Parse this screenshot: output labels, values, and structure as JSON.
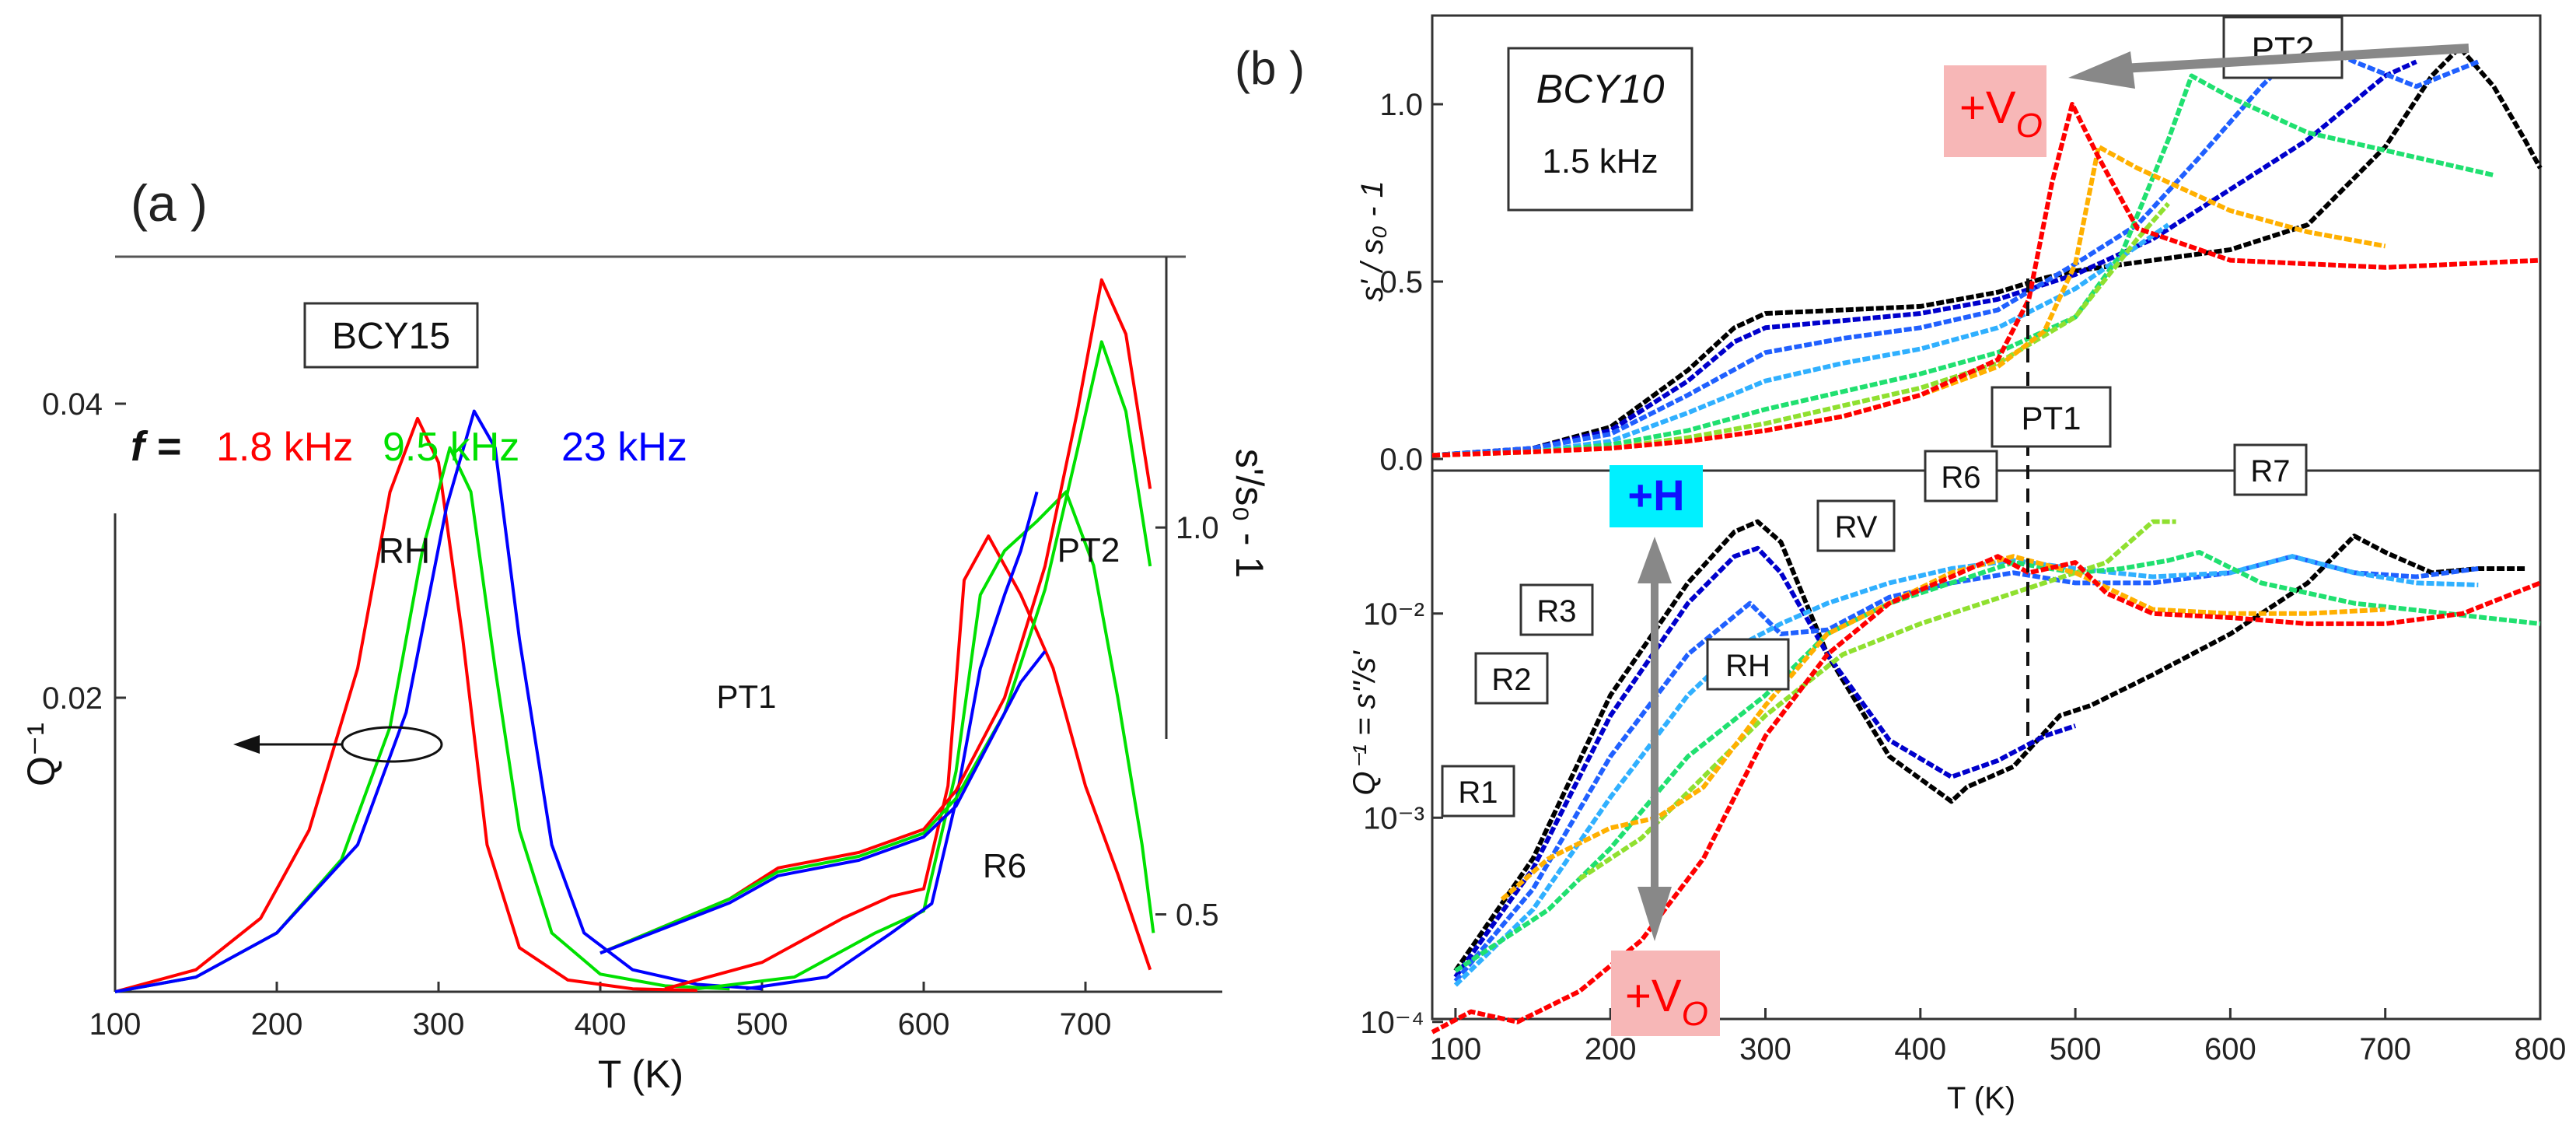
{
  "chart_data": [
    {
      "panel": "(a )",
      "type": "line",
      "boxed_label": "BCY15",
      "f_prefix": "f =",
      "legend": [
        {
          "name": "1.8 kHz",
          "color": "#ff0000"
        },
        {
          "name": "9.5 kHz",
          "color": "#00e000"
        },
        {
          "name": "23 kHz",
          "color": "#0000ff"
        }
      ],
      "xlabel": "T (K)",
      "xlim": [
        100,
        750
      ],
      "xticks": [
        "100",
        "200",
        "300",
        "400",
        "500",
        "600",
        "700"
      ],
      "ylabel_left": "Q⁻¹",
      "ylim_left": [
        0,
        0.05
      ],
      "yticks_left": [
        "0.02",
        "0.04"
      ],
      "ylabel_right": "s'/s₀ - 1",
      "ylim_right": [
        0.4,
        1.35
      ],
      "yticks_right": [
        "0.5",
        "1.0"
      ],
      "annotations": {
        "rh": "RH",
        "pt1": "PT1",
        "pt2": "PT2",
        "r6": "R6"
      },
      "series": [
        {
          "name": "Q-1 1.8 kHz",
          "axis": "left",
          "color": "#ff0000",
          "x": [
            100,
            150,
            190,
            220,
            250,
            270,
            287,
            300,
            315,
            330,
            350,
            380,
            420,
            460
          ],
          "y": [
            0,
            0.0015,
            0.005,
            0.011,
            0.022,
            0.034,
            0.039,
            0.036,
            0.024,
            0.01,
            0.003,
            0.0008,
            0.0002,
            0.0001
          ]
        },
        {
          "name": "Q-1 9.5 kHz",
          "axis": "left",
          "color": "#00e000",
          "x": [
            100,
            150,
            200,
            240,
            270,
            290,
            307,
            320,
            335,
            350,
            370,
            400,
            440,
            480
          ],
          "y": [
            0,
            0.001,
            0.004,
            0.009,
            0.018,
            0.03,
            0.037,
            0.034,
            0.022,
            0.011,
            0.004,
            0.0012,
            0.0004,
            0.0002
          ]
        },
        {
          "name": "Q-1 23 kHz",
          "axis": "left",
          "color": "#0000ff",
          "x": [
            100,
            150,
            200,
            250,
            280,
            305,
            322,
            335,
            350,
            370,
            390,
            420,
            460,
            500
          ],
          "y": [
            0,
            0.001,
            0.004,
            0.01,
            0.019,
            0.033,
            0.0395,
            0.037,
            0.024,
            0.01,
            0.004,
            0.0015,
            0.0005,
            0.0002
          ]
        },
        {
          "name": "Q-1 1.8 kHz high-T",
          "axis": "left",
          "color": "#ff0000",
          "x": [
            440,
            500,
            550,
            580,
            600,
            615,
            625,
            640,
            660,
            680,
            700,
            720,
            740
          ],
          "y": [
            0.0002,
            0.002,
            0.005,
            0.0065,
            0.007,
            0.014,
            0.028,
            0.031,
            0.027,
            0.022,
            0.014,
            0.008,
            0.0015
          ]
        },
        {
          "name": "Q-1 9.5 kHz high-T",
          "axis": "left",
          "color": "#00e000",
          "x": [
            460,
            520,
            570,
            600,
            620,
            635,
            650,
            670,
            688,
            705,
            720,
            735,
            742
          ],
          "y": [
            0.0002,
            0.001,
            0.004,
            0.0055,
            0.015,
            0.027,
            0.03,
            0.032,
            0.034,
            0.029,
            0.02,
            0.01,
            0.004
          ]
        },
        {
          "name": "Q-1 23 kHz high-T",
          "axis": "left",
          "color": "#0000ff",
          "x": [
            490,
            540,
            580,
            605,
            620,
            635,
            650,
            660,
            670
          ],
          "y": [
            0.0002,
            0.001,
            0.004,
            0.006,
            0.013,
            0.022,
            0.027,
            0.03,
            0.034
          ]
        },
        {
          "name": "s'/s0-1 1.8 kHz",
          "axis": "right",
          "color": "#ff0000",
          "x": [
            400,
            480,
            510,
            560,
            600,
            620,
            650,
            675,
            695,
            710,
            725,
            740
          ],
          "y": [
            0.45,
            0.52,
            0.56,
            0.58,
            0.61,
            0.66,
            0.78,
            0.95,
            1.15,
            1.32,
            1.25,
            1.05
          ]
        },
        {
          "name": "s'/s0-1 9.5 kHz",
          "axis": "right",
          "color": "#00e000",
          "x": [
            400,
            480,
            510,
            560,
            600,
            620,
            650,
            675,
            695,
            710,
            725,
            740
          ],
          "y": [
            0.45,
            0.52,
            0.555,
            0.575,
            0.605,
            0.65,
            0.76,
            0.92,
            1.1,
            1.24,
            1.15,
            0.95
          ]
        },
        {
          "name": "s'/s0-1 23 kHz",
          "axis": "right",
          "color": "#0000ff",
          "x": [
            400,
            480,
            510,
            560,
            600,
            620,
            640,
            660,
            675
          ],
          "y": [
            0.45,
            0.515,
            0.55,
            0.57,
            0.6,
            0.64,
            0.72,
            0.8,
            0.84
          ]
        }
      ]
    },
    {
      "panel": "(b )",
      "type": "line",
      "boxed_label": "BCY10",
      "subtitle": "1.5 kHz",
      "xlabel": "T (K)",
      "xlim": [
        85,
        800
      ],
      "xticks": [
        "100",
        "200",
        "300",
        "400",
        "500",
        "600",
        "700",
        "800"
      ],
      "top_ylabel": "s' / s₀ - 1",
      "top_ylim": [
        0,
        1.25
      ],
      "top_yticks": [
        "0.0",
        "0.5",
        "1.0"
      ],
      "bottom_ylabel": "Q⁻¹ = s''/s'",
      "bottom_ylim_log10": [
        -4.1,
        -1.3
      ],
      "bottom_yticks": [
        "10⁻⁴",
        "10⁻³",
        "10⁻²"
      ],
      "annotations": {
        "pt2": "PT2",
        "vo_top": "+V",
        "vo_sub": "O",
        "pt1": "PT1",
        "h_label": "+H",
        "vo_bottom": "+V",
        "vo_bottom_sub": "O",
        "r1": "R1",
        "r2": "R2",
        "r3": "R3",
        "rh": "RH",
        "rv": "RV",
        "r6": "R6",
        "r7": "R7"
      },
      "series": [
        {
          "name": "s' black",
          "axis": "top",
          "color": "#000000",
          "x": [
            85,
            150,
            200,
            250,
            280,
            300,
            350,
            400,
            450,
            480,
            500,
            550,
            600,
            650,
            700,
            730,
            748,
            770,
            790,
            800
          ],
          "y": [
            0.01,
            0.03,
            0.09,
            0.25,
            0.37,
            0.41,
            0.42,
            0.43,
            0.47,
            0.51,
            0.53,
            0.56,
            0.59,
            0.66,
            0.88,
            1.08,
            1.16,
            1.05,
            0.9,
            0.82
          ]
        },
        {
          "name": "s' dark blue",
          "axis": "top",
          "color": "#0000cc",
          "x": [
            85,
            150,
            200,
            250,
            280,
            300,
            350,
            400,
            450,
            500,
            550,
            600,
            650,
            700,
            720
          ],
          "y": [
            0.01,
            0.03,
            0.08,
            0.22,
            0.33,
            0.37,
            0.39,
            0.41,
            0.45,
            0.52,
            0.62,
            0.76,
            0.9,
            1.08,
            1.12
          ]
        },
        {
          "name": "s' blue",
          "axis": "top",
          "color": "#2060ff",
          "x": [
            85,
            150,
            200,
            250,
            300,
            350,
            400,
            450,
            500,
            540,
            580,
            620,
            650,
            680,
            720,
            760
          ],
          "y": [
            0.01,
            0.03,
            0.07,
            0.18,
            0.3,
            0.34,
            0.37,
            0.42,
            0.55,
            0.66,
            0.85,
            1.05,
            1.18,
            1.12,
            1.05,
            1.12
          ]
        },
        {
          "name": "s' light blue",
          "axis": "top",
          "color": "#30b0ff",
          "x": [
            85,
            150,
            200,
            250,
            300,
            350,
            400,
            450,
            500,
            540,
            560
          ],
          "y": [
            0.01,
            0.02,
            0.05,
            0.13,
            0.22,
            0.27,
            0.31,
            0.37,
            0.48,
            0.6,
            0.66
          ]
        },
        {
          "name": "s' green",
          "axis": "top",
          "color": "#20e070",
          "x": [
            85,
            150,
            200,
            250,
            300,
            350,
            400,
            450,
            500,
            530,
            560,
            575,
            600,
            650,
            700,
            750,
            770
          ],
          "y": [
            0.01,
            0.02,
            0.04,
            0.08,
            0.14,
            0.19,
            0.24,
            0.3,
            0.4,
            0.58,
            0.9,
            1.08,
            1.02,
            0.92,
            0.87,
            0.82,
            0.8
          ]
        },
        {
          "name": "s' yellow-green",
          "axis": "top",
          "color": "#90e030",
          "x": [
            85,
            150,
            200,
            250,
            300,
            350,
            400,
            450,
            500,
            540,
            560
          ],
          "y": [
            0.01,
            0.02,
            0.03,
            0.06,
            0.1,
            0.15,
            0.2,
            0.27,
            0.4,
            0.62,
            0.72
          ]
        },
        {
          "name": "s' orange",
          "axis": "top",
          "color": "#ffb000",
          "x": [
            85,
            150,
            200,
            250,
            300,
            350,
            400,
            450,
            480,
            500,
            515,
            540,
            600,
            650,
            700
          ],
          "y": [
            0.01,
            0.02,
            0.03,
            0.05,
            0.08,
            0.12,
            0.18,
            0.26,
            0.36,
            0.55,
            0.88,
            0.82,
            0.7,
            0.64,
            0.6
          ]
        },
        {
          "name": "s' red",
          "axis": "top",
          "color": "#ff0000",
          "x": [
            85,
            150,
            200,
            250,
            300,
            350,
            400,
            450,
            470,
            485,
            498,
            515,
            540,
            600,
            700,
            800
          ],
          "y": [
            0.01,
            0.02,
            0.03,
            0.05,
            0.08,
            0.12,
            0.18,
            0.28,
            0.45,
            0.78,
            1.0,
            0.85,
            0.65,
            0.56,
            0.54,
            0.56
          ]
        },
        {
          "name": "Q-1 black",
          "axis": "bottom",
          "color": "#000000",
          "x": [
            100,
            150,
            200,
            250,
            280,
            295,
            310,
            340,
            380,
            420,
            430,
            460,
            490,
            510,
            550,
            600,
            650,
            680,
            700,
            730,
            760,
            790
          ],
          "y": [
            -3.75,
            -3.2,
            -2.4,
            -1.85,
            -1.6,
            -1.55,
            -1.65,
            -2.2,
            -2.7,
            -2.92,
            -2.85,
            -2.75,
            -2.5,
            -2.45,
            -2.3,
            -2.1,
            -1.85,
            -1.62,
            -1.7,
            -1.8,
            -1.78,
            -1.78
          ]
        },
        {
          "name": "Q-1 dark blue",
          "axis": "bottom",
          "color": "#0000cc",
          "x": [
            100,
            150,
            200,
            250,
            280,
            295,
            310,
            340,
            380,
            420,
            450,
            480,
            500
          ],
          "y": [
            -3.78,
            -3.25,
            -2.5,
            -1.95,
            -1.72,
            -1.68,
            -1.8,
            -2.2,
            -2.62,
            -2.8,
            -2.72,
            -2.6,
            -2.55
          ]
        },
        {
          "name": "Q-1 blue",
          "axis": "bottom",
          "color": "#2060ff",
          "x": [
            100,
            150,
            200,
            250,
            290,
            310,
            340,
            380,
            420,
            460,
            500,
            550,
            600,
            640,
            680,
            720,
            760
          ],
          "y": [
            -3.8,
            -3.35,
            -2.7,
            -2.2,
            -1.95,
            -2.1,
            -2.08,
            -1.92,
            -1.85,
            -1.8,
            -1.85,
            -1.85,
            -1.8,
            -1.72,
            -1.8,
            -1.82,
            -1.78
          ]
        },
        {
          "name": "Q-1 light blue",
          "axis": "bottom",
          "color": "#30b0ff",
          "x": [
            100,
            150,
            200,
            250,
            285,
            310,
            340,
            380,
            420,
            460,
            500,
            550,
            600,
            640,
            680,
            720,
            760
          ],
          "y": [
            -3.82,
            -3.45,
            -2.9,
            -2.4,
            -2.15,
            -2.05,
            -1.95,
            -1.85,
            -1.78,
            -1.74,
            -1.78,
            -1.82,
            -1.8,
            -1.72,
            -1.8,
            -1.85,
            -1.86
          ]
        },
        {
          "name": "Q-1 green",
          "axis": "bottom",
          "color": "#20e070",
          "x": [
            100,
            130,
            160,
            200,
            250,
            300,
            340,
            380,
            420,
            460,
            500,
            530,
            560,
            580,
            620,
            680,
            740,
            800
          ],
          "y": [
            -3.75,
            -3.6,
            -3.45,
            -3.15,
            -2.7,
            -2.4,
            -2.1,
            -1.95,
            -1.85,
            -1.75,
            -1.8,
            -1.78,
            -1.74,
            -1.7,
            -1.85,
            -1.95,
            -2.0,
            -2.05
          ]
        },
        {
          "name": "Q-1 yellow-green",
          "axis": "bottom",
          "color": "#90e030",
          "x": [
            180,
            220,
            260,
            300,
            350,
            400,
            440,
            480,
            520,
            550,
            565
          ],
          "y": [
            -3.3,
            -3.1,
            -2.8,
            -2.5,
            -2.2,
            -2.05,
            -1.95,
            -1.85,
            -1.75,
            -1.55,
            -1.55
          ]
        },
        {
          "name": "Q-1 orange",
          "axis": "bottom",
          "color": "#ffb000",
          "x": [
            130,
            160,
            200,
            230,
            260,
            300,
            340,
            380,
            420,
            460,
            500,
            550,
            600,
            650,
            700
          ],
          "y": [
            -3.4,
            -3.2,
            -3.05,
            -3.0,
            -2.85,
            -2.45,
            -2.1,
            -1.95,
            -1.8,
            -1.72,
            -1.8,
            -1.98,
            -2.0,
            -2.0,
            -1.98
          ]
        },
        {
          "name": "Q-1 red",
          "axis": "bottom",
          "color": "#ff0000",
          "x": [
            85,
            110,
            140,
            180,
            220,
            260,
            300,
            340,
            380,
            420,
            450,
            470,
            500,
            520,
            550,
            600,
            650,
            700,
            750,
            800
          ],
          "y": [
            -4.05,
            -3.95,
            -4.0,
            -3.85,
            -3.6,
            -3.2,
            -2.6,
            -2.2,
            -1.95,
            -1.82,
            -1.72,
            -1.8,
            -1.75,
            -1.9,
            -2.0,
            -2.02,
            -2.05,
            -2.05,
            -2.0,
            -1.85
          ]
        }
      ]
    }
  ]
}
